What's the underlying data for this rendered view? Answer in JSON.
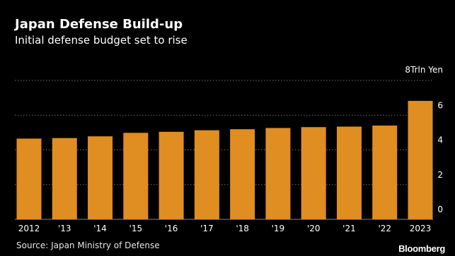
{
  "header": {
    "title": "Japan Defense Build-up",
    "subtitle": "Initial defense budget set to rise"
  },
  "footer": {
    "source": "Source: Japan Ministry of Defense",
    "brand": "Bloomberg"
  },
  "colors": {
    "background": "#000000",
    "bar": "#e08d22",
    "gridline": "#6e6e6e",
    "text": "#ffffff"
  },
  "chart_data": {
    "type": "bar",
    "title": "Japan Defense Build-up",
    "subtitle": "Initial defense budget set to rise",
    "unit_label": "8Trln Yen",
    "categories": [
      "2012",
      "'13",
      "'14",
      "'15",
      "'16",
      "'17",
      "'18",
      "'19",
      "'20",
      "'21",
      "'22",
      "2023"
    ],
    "values": [
      4.65,
      4.68,
      4.78,
      4.98,
      5.04,
      5.13,
      5.19,
      5.26,
      5.31,
      5.34,
      5.4,
      6.82
    ],
    "y_ticks": [
      "0",
      "2",
      "4",
      "6"
    ],
    "ylim": [
      0,
      8
    ],
    "grid": true,
    "axis_side": "right"
  }
}
